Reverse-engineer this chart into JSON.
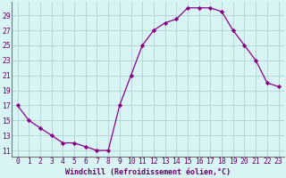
{
  "x": [
    0,
    1,
    2,
    3,
    4,
    5,
    6,
    7,
    8,
    9,
    10,
    11,
    12,
    13,
    14,
    15,
    16,
    17,
    18,
    19,
    20,
    21,
    22,
    23
  ],
  "y": [
    17,
    15,
    14,
    13,
    12,
    12,
    11.5,
    11,
    11,
    17,
    21,
    25,
    27,
    28,
    28.5,
    30,
    30,
    30,
    29.5,
    27,
    25,
    23,
    20,
    19.5
  ],
  "line_color": "#880088",
  "marker": "D",
  "markersize": 2.2,
  "linewidth": 0.9,
  "bg_color": "#d8f4f4",
  "grid_color": "#aacccc",
  "xlabel": "Windchill (Refroidissement éolien,°C)",
  "xlabel_fontsize": 6.0,
  "tick_color": "#660066",
  "tick_fontsize": 5.8,
  "ytick_labels": [
    "11",
    "13",
    "15",
    "17",
    "19",
    "21",
    "23",
    "25",
    "27",
    "29"
  ],
  "yticks": [
    11,
    13,
    15,
    17,
    19,
    21,
    23,
    25,
    27,
    29
  ],
  "ylim": [
    10.2,
    30.8
  ],
  "xlim": [
    -0.5,
    23.5
  ]
}
